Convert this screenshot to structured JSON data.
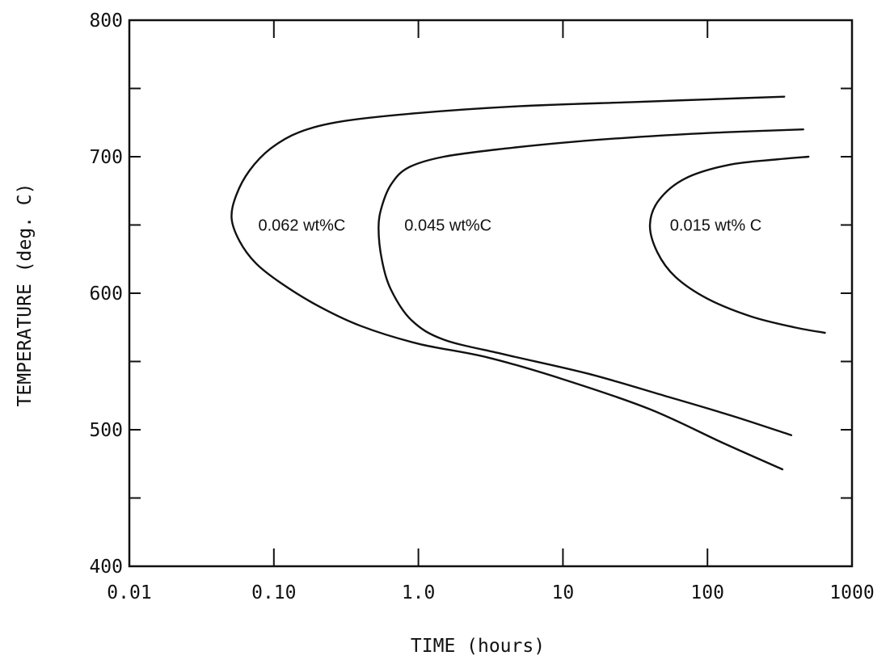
{
  "chart_data": {
    "type": "line",
    "title": "",
    "xlabel": "TIME (hours)",
    "ylabel": "TEMPERATURE (deg. C)",
    "x_scale": "log",
    "xlim": [
      0.01,
      1000
    ],
    "ylim": [
      400,
      800
    ],
    "x_ticks": [
      0.01,
      0.1,
      1,
      10,
      100,
      1000
    ],
    "x_tick_labels": [
      "0.01",
      "0.10",
      "1.0",
      "10",
      "100",
      "1000"
    ],
    "y_ticks": [
      400,
      500,
      600,
      700,
      800
    ],
    "y_tick_labels": [
      "400",
      "500",
      "600",
      "700",
      "800"
    ],
    "y_minor_ticks": [
      450,
      550,
      650,
      750
    ],
    "grid": false,
    "legend": "none",
    "series_labels": [
      "0.062 wt%C",
      "0.045 wt%C",
      "0.015 wt% C"
    ],
    "series": [
      {
        "name": "0.062 wt%C",
        "points": [
          [
            330,
            471
          ],
          [
            130,
            490
          ],
          [
            40,
            515
          ],
          [
            10,
            537
          ],
          [
            3,
            553
          ],
          [
            1.0,
            563
          ],
          [
            0.4,
            576
          ],
          [
            0.2,
            591
          ],
          [
            0.11,
            608
          ],
          [
            0.075,
            622
          ],
          [
            0.058,
            638
          ],
          [
            0.051,
            655
          ],
          [
            0.055,
            672
          ],
          [
            0.068,
            690
          ],
          [
            0.095,
            706
          ],
          [
            0.15,
            718
          ],
          [
            0.3,
            726
          ],
          [
            1.0,
            732
          ],
          [
            5,
            737
          ],
          [
            30,
            740
          ],
          [
            100,
            742
          ],
          [
            340,
            744
          ]
        ]
      },
      {
        "name": "0.045 wt%C",
        "points": [
          [
            380,
            496
          ],
          [
            150,
            510
          ],
          [
            50,
            525
          ],
          [
            15,
            541
          ],
          [
            4,
            555
          ],
          [
            1.5,
            566
          ],
          [
            0.9,
            580
          ],
          [
            0.65,
            602
          ],
          [
            0.56,
            624
          ],
          [
            0.53,
            648
          ],
          [
            0.56,
            664
          ],
          [
            0.65,
            680
          ],
          [
            0.85,
            692
          ],
          [
            1.5,
            700
          ],
          [
            4,
            706
          ],
          [
            12,
            711
          ],
          [
            40,
            715
          ],
          [
            140,
            718
          ],
          [
            460,
            720
          ]
        ]
      },
      {
        "name": "0.015 wt% C",
        "points": [
          [
            650,
            571
          ],
          [
            400,
            575
          ],
          [
            200,
            583
          ],
          [
            100,
            596
          ],
          [
            60,
            612
          ],
          [
            45,
            630
          ],
          [
            40,
            650
          ],
          [
            46,
            668
          ],
          [
            70,
            684
          ],
          [
            140,
            694
          ],
          [
            300,
            698
          ],
          [
            500,
            700
          ]
        ]
      }
    ],
    "colors": {
      "line": "#111111",
      "axis": "#111111",
      "background": "#ffffff"
    }
  }
}
